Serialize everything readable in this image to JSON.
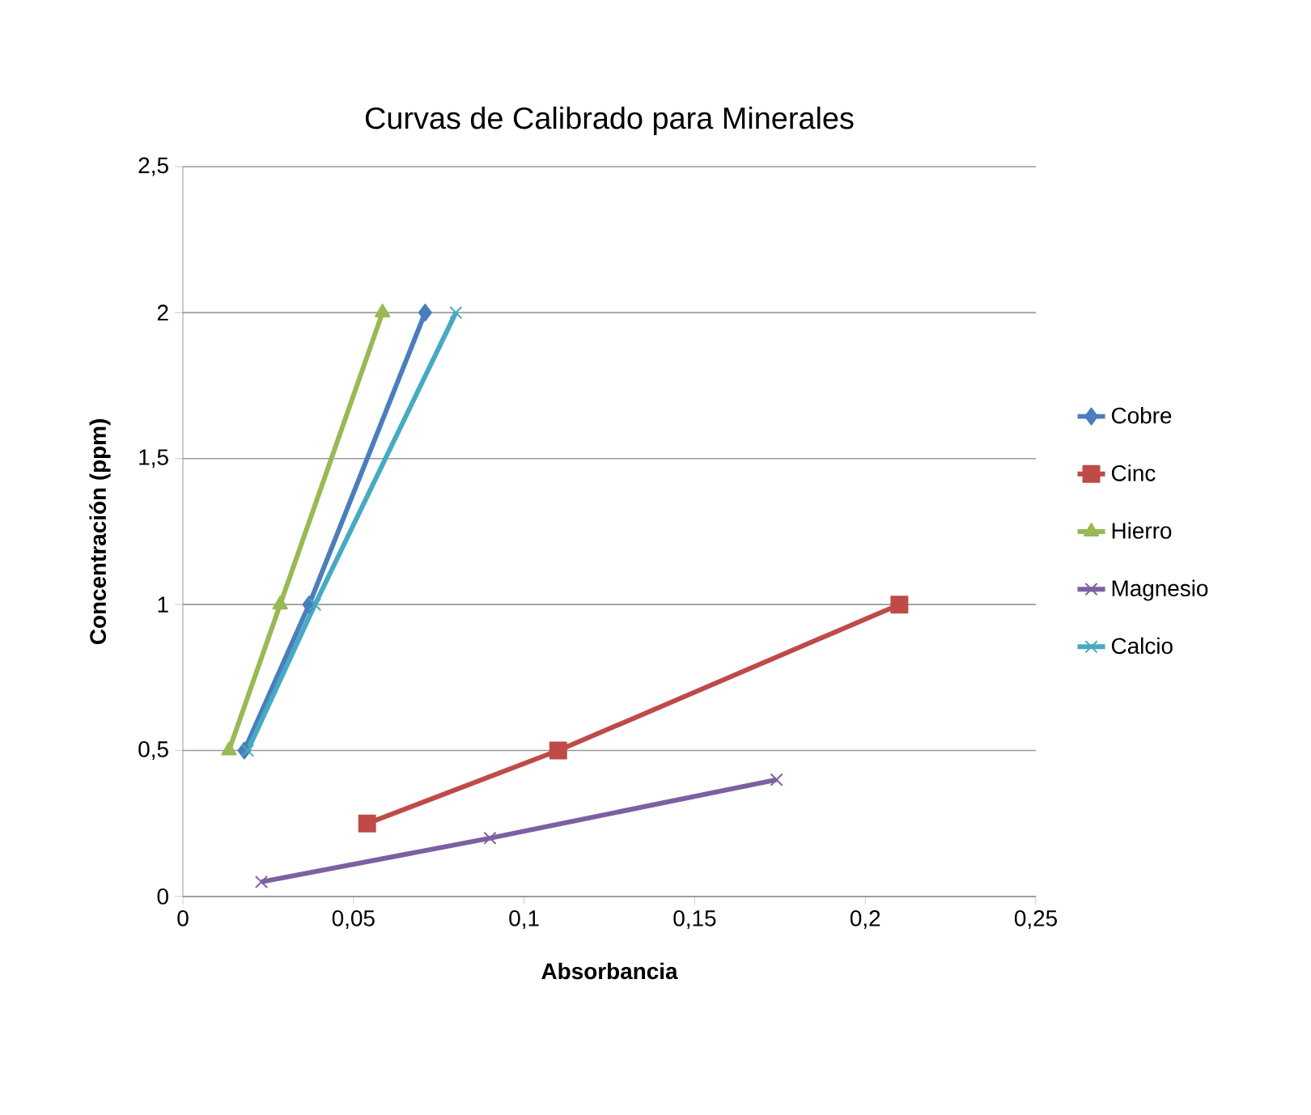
{
  "chart_data": {
    "type": "line",
    "title": "Curvas de Calibrado para Minerales",
    "xlabel": "Absorbancia",
    "ylabel": "Concentración (ppm)",
    "xlim": [
      0,
      0.25
    ],
    "ylim": [
      0,
      2.5
    ],
    "xticks": [
      0,
      {
        "value": 0.05,
        "label": "0,05"
      },
      {
        "value": 0.1,
        "label": "0,1"
      },
      {
        "value": 0.15,
        "label": "0,15"
      },
      {
        "value": 0.2,
        "label": "0,2"
      },
      {
        "value": 0.25,
        "label": "0,25"
      }
    ],
    "yticks": [
      0,
      {
        "value": 0.5,
        "label": "0,5"
      },
      1,
      {
        "value": 1.5,
        "label": "1,5"
      },
      2,
      {
        "value": 2.5,
        "label": "2,5"
      }
    ],
    "grid": "y",
    "legend": "right",
    "series": [
      {
        "name": "Cobre",
        "color": "#4a7ebb",
        "marker": "diamond",
        "x": [
          0.018,
          0.037,
          0.071
        ],
        "values": [
          0.5,
          1,
          2
        ]
      },
      {
        "name": "Cinc",
        "color": "#be4b48",
        "marker": "square",
        "x": [
          0.054,
          0.11,
          0.21
        ],
        "values": [
          0.25,
          0.5,
          1
        ]
      },
      {
        "name": "Hierro",
        "color": "#98b954",
        "marker": "triangle",
        "x": [
          0.0135,
          0.0285,
          0.0585
        ],
        "values": [
          0.5,
          1,
          2
        ]
      },
      {
        "name": "Magnesio",
        "color": "#7d60a0",
        "marker": "cross",
        "x": [
          0.023,
          0.09,
          0.174
        ],
        "values": [
          0.05,
          0.2,
          0.4
        ]
      },
      {
        "name": "Calcio",
        "color": "#46aac5",
        "marker": "cross",
        "x": [
          0.019,
          0.0387,
          0.08
        ],
        "values": [
          0.5,
          1,
          2
        ]
      }
    ]
  }
}
